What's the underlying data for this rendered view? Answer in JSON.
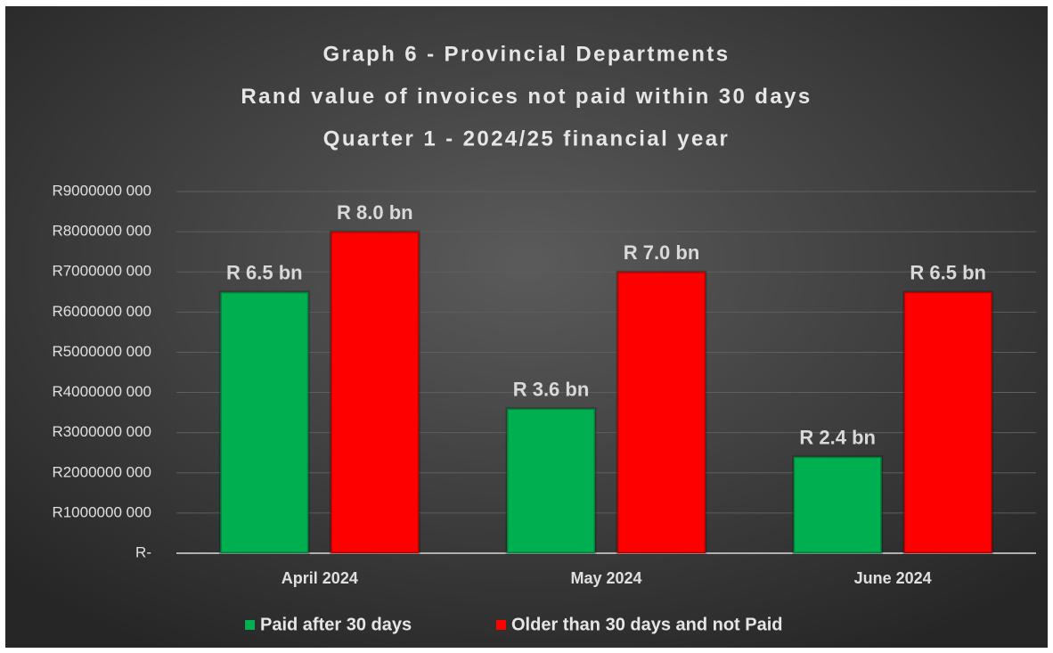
{
  "chart_data": {
    "type": "bar",
    "title": [
      "Graph 6 - Provincial Departments",
      "Rand value of invoices not paid within 30 days",
      "Quarter 1 - 2024/25 financial year"
    ],
    "categories": [
      "April 2024",
      "May 2024",
      "June 2024"
    ],
    "series": [
      {
        "name": "Paid after 30 days",
        "color": "#00b050",
        "values": [
          6500000000,
          3600000000,
          2400000000
        ],
        "value_labels": [
          "R 6.5 bn",
          "R 3.6 bn",
          "R 2.4 bn"
        ]
      },
      {
        "name": "Older than 30 days and not Paid",
        "color": "#ff0000",
        "values": [
          8000000000,
          7000000000,
          6500000000
        ],
        "value_labels": [
          "R 8.0 bn",
          "R 7.0 bn",
          "R 6.5 bn"
        ]
      }
    ],
    "ylim": [
      0,
      9000000000
    ],
    "yticks": [
      {
        "value": 0,
        "label": "R-"
      },
      {
        "value": 1000000000,
        "label": "R1000000 000"
      },
      {
        "value": 2000000000,
        "label": "R2000000 000"
      },
      {
        "value": 3000000000,
        "label": "R3000000 000"
      },
      {
        "value": 4000000000,
        "label": "R4000000 000"
      },
      {
        "value": 5000000000,
        "label": "R5000000 000"
      },
      {
        "value": 6000000000,
        "label": "R6000000 000"
      },
      {
        "value": 7000000000,
        "label": "R7000000 000"
      },
      {
        "value": 8000000000,
        "label": "R8000000 000"
      },
      {
        "value": 9000000000,
        "label": "R9000000 000"
      }
    ],
    "grid": true,
    "legend": "bottom"
  }
}
